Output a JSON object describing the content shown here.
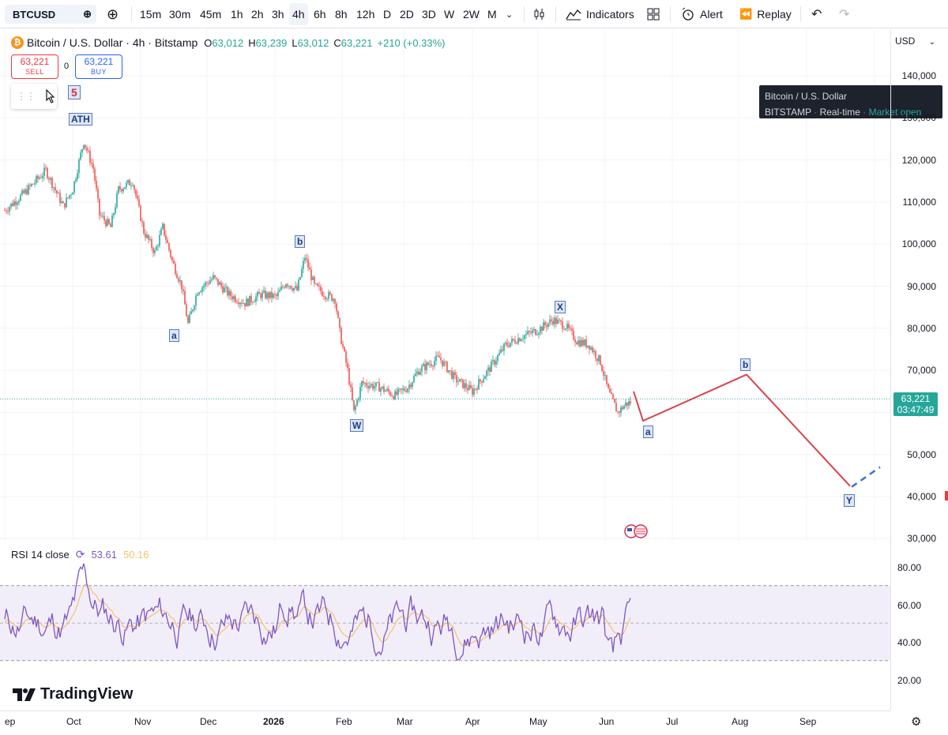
{
  "toolbar": {
    "symbol": "BTCUSD",
    "intervals": [
      "15m",
      "30m",
      "45m",
      "1h",
      "2h",
      "3h",
      "4h",
      "6h",
      "8h",
      "12h",
      "D",
      "2D",
      "3D",
      "W",
      "2W",
      "M"
    ],
    "active_interval": "4h",
    "indicators_label": "Indicators",
    "alert_label": "Alert",
    "replay_label": "Replay"
  },
  "legend": {
    "title": "Bitcoin / U.S. Dollar · 4h · Bitstamp",
    "o_label": "O",
    "o_value": "63,012",
    "h_label": "H",
    "h_value": "63,239",
    "l_label": "L",
    "l_value": "63,012",
    "c_label": "C",
    "c_value": "63,221",
    "change": "+210 (+0.33%)"
  },
  "trade": {
    "sell_price": "63,221",
    "sell_label": "SELL",
    "buy_price": "63,221",
    "buy_label": "BUY",
    "spread": "0"
  },
  "tooltip": {
    "name": "Bitcoin / U.S. Dollar",
    "exchange": "BITSTAMP",
    "feed": "Real-time",
    "status": "Market open"
  },
  "price_scale": {
    "currency": "USD",
    "labels": [
      "140,000",
      "130,000",
      "120,000",
      "110,000",
      "100,000",
      "90,000",
      "80,000",
      "70,000",
      "60,000",
      "50,000",
      "40,000",
      "30,000"
    ],
    "current_price": "63,221",
    "countdown": "03:47:49"
  },
  "wave_labels": {
    "five": "5",
    "ath": "ATH",
    "a1": "a",
    "b1": "b",
    "w": "W",
    "x": "X",
    "a2": "a",
    "b2": "b",
    "y": "Y"
  },
  "rsi": {
    "title": "RSI 14 close",
    "value": "53.61",
    "ma_value": "50.16",
    "labels": [
      "80.00",
      "60.00",
      "40.00",
      "20.00"
    ]
  },
  "time_axis": [
    "ep",
    "Oct",
    "Nov",
    "Dec",
    "2026",
    "Feb",
    "Mar",
    "Apr",
    "May",
    "Jun",
    "Jul",
    "Aug",
    "Sep"
  ],
  "branding": {
    "logo_text": "TradingView"
  },
  "colors": {
    "up": "#26a69a",
    "down": "#ef5350",
    "projection": "#d9434b",
    "rsi": "#7e57c2",
    "rsi_ma": "#f5c26b"
  }
}
